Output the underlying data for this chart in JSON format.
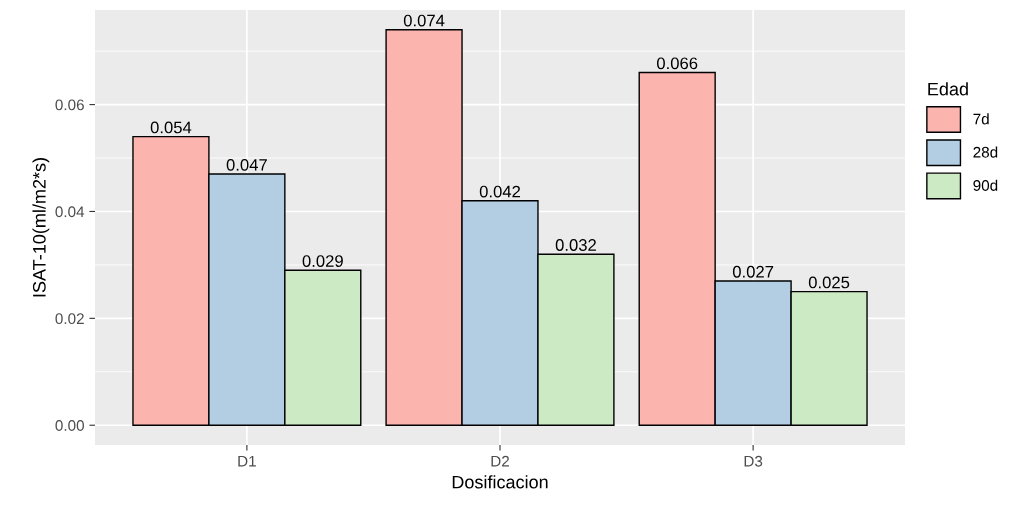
{
  "chart_data": {
    "type": "bar",
    "xlabel": "Dosificacion",
    "ylabel": "ISAT-10(ml/m2*s)",
    "legend_title": "Edad",
    "categories": [
      "D1",
      "D2",
      "D3"
    ],
    "series": [
      {
        "name": "7d",
        "color": "#fbb4ae",
        "values": [
          0.054,
          0.074,
          0.066
        ]
      },
      {
        "name": "28d",
        "color": "#b3cde3",
        "values": [
          0.047,
          0.042,
          0.027
        ]
      },
      {
        "name": "90d",
        "color": "#ccebc5",
        "values": [
          0.029,
          0.032,
          0.025
        ]
      }
    ],
    "ylim": [
      -0.0037,
      0.0777
    ],
    "yticks": [
      {
        "value": 0,
        "label": "0.00"
      },
      {
        "value": 0.02,
        "label": "0.02"
      },
      {
        "value": 0.04,
        "label": "0.04"
      },
      {
        "value": 0.06,
        "label": "0.06"
      }
    ],
    "data_labels": true,
    "grid": true,
    "legend": "right"
  }
}
